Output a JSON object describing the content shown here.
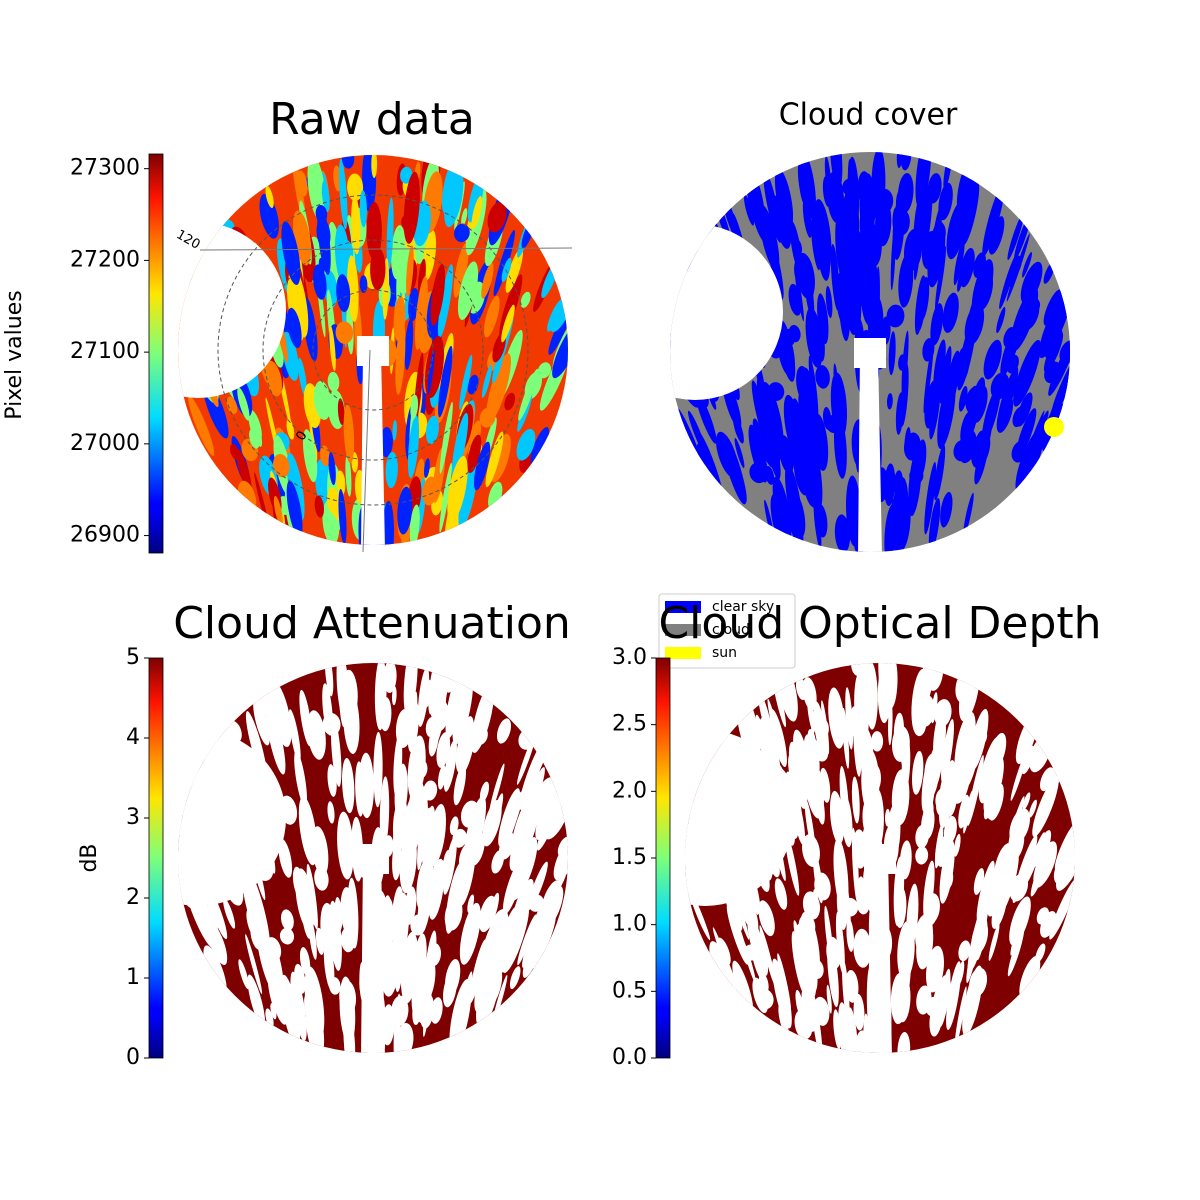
{
  "chart_data": [
    {
      "type": "image",
      "title": "Raw data",
      "colorbar": {
        "label": "Pixel values",
        "lim": [
          26881,
          27316
        ],
        "ticks": [
          26900,
          27000,
          27100,
          27200,
          27300
        ]
      },
      "polar_labels": [
        "120",
        "0"
      ]
    },
    {
      "type": "category_image",
      "title": "Cloud cover",
      "series": [
        {
          "name": "clear sky",
          "color": "#0000ff"
        },
        {
          "name": "cloud",
          "color": "#808080"
        },
        {
          "name": "sun",
          "color": "#ffff00"
        }
      ]
    },
    {
      "type": "image",
      "title": "Cloud Attenuation",
      "colorbar": {
        "label": "dB",
        "lim": [
          0,
          5
        ],
        "ticks": [
          0,
          1,
          2,
          3,
          4,
          5
        ]
      }
    },
    {
      "type": "image",
      "title": "Cloud Optical Depth",
      "colorbar": {
        "lim": [
          0,
          3
        ],
        "ticks": [
          {
            "value": 0,
            "label": "0.0"
          },
          {
            "value": 0.5,
            "label": "0.5"
          },
          {
            "value": 1,
            "label": "1.0"
          },
          {
            "value": 1.5,
            "label": "1.5"
          },
          {
            "value": 2,
            "label": "2.0"
          },
          {
            "value": 2.5,
            "label": "2.5"
          },
          {
            "value": 3,
            "label": "3.0"
          }
        ]
      }
    }
  ]
}
